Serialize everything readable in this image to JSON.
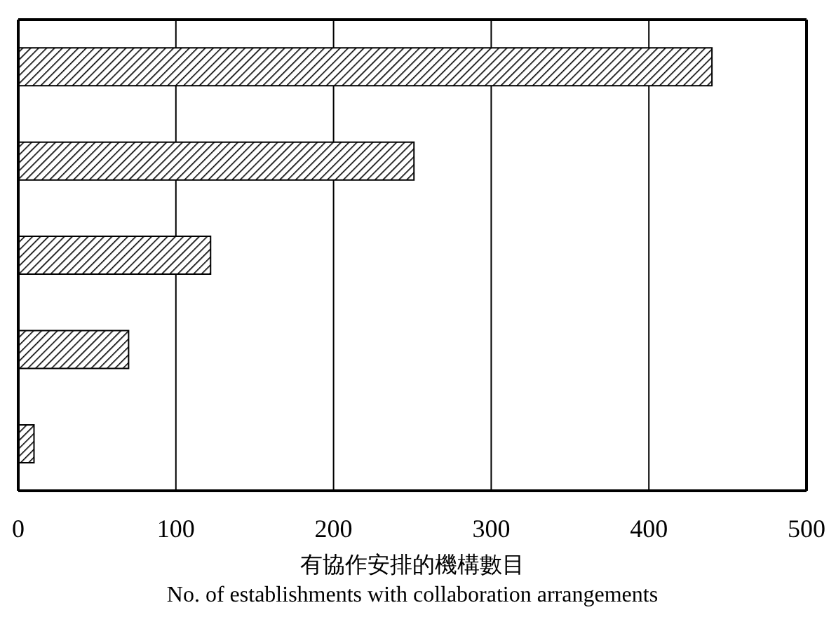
{
  "chart_data": {
    "type": "bar",
    "orientation": "horizontal",
    "categories": [
      null,
      null,
      null,
      null,
      null
    ],
    "values": [
      440,
      251,
      122,
      70,
      10
    ],
    "color": "#000000",
    "xlim": [
      0,
      500
    ],
    "xticks": [
      0,
      100,
      200,
      300,
      400,
      500
    ],
    "xlabel": "有協作安排的機構數目\nNo. of establishments with collaboration arrangements",
    "grid": "x",
    "tick_labels": "x"
  }
}
